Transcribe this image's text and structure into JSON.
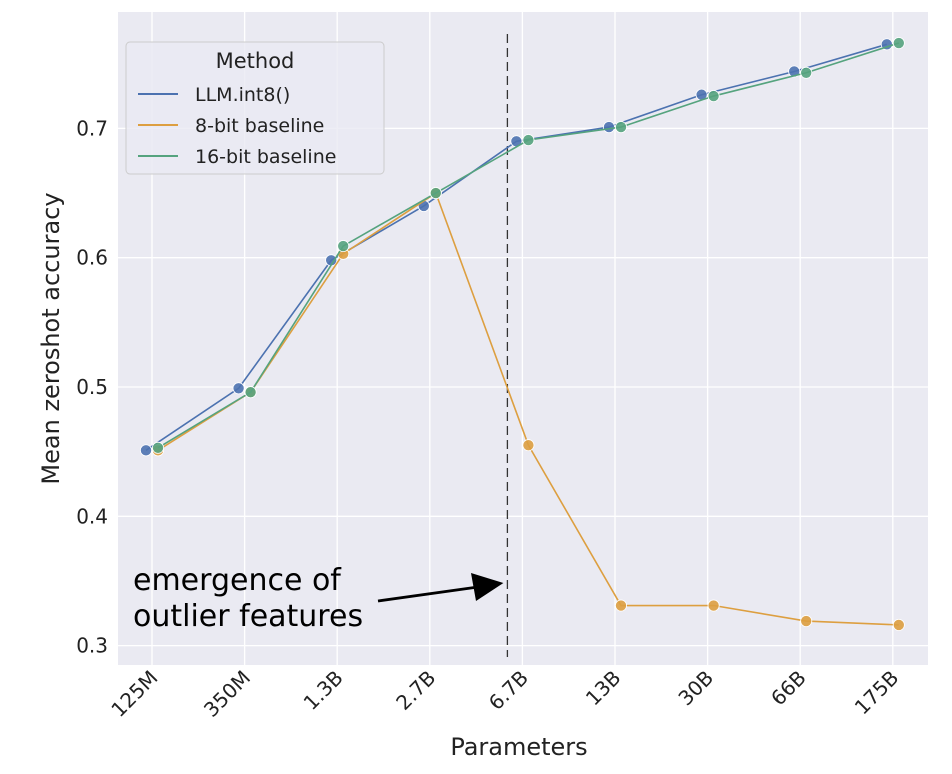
{
  "chart_data": {
    "type": "line",
    "title": "",
    "xlabel": "Parameters",
    "ylabel": "Mean zeroshot accuracy",
    "categories": [
      "125M",
      "350M",
      "1.3B",
      "2.7B",
      "6.7B",
      "13B",
      "30B",
      "66B",
      "175B"
    ],
    "ylim": [
      0.285,
      0.79
    ],
    "yticks": [
      0.3,
      0.4,
      0.5,
      0.6,
      0.7
    ],
    "ytick_labels": [
      "0.3",
      "0.4",
      "0.5",
      "0.6",
      "0.7"
    ],
    "grid": true,
    "legend": {
      "title": "Method",
      "position": "top-left"
    },
    "series": [
      {
        "name": "LLM.int8()",
        "color": "#4c72b0",
        "values": [
          0.451,
          0.499,
          0.598,
          0.64,
          0.69,
          0.701,
          0.726,
          0.744,
          0.765
        ]
      },
      {
        "name": "8-bit baseline",
        "color": "#dd9f40",
        "values": [
          0.451,
          0.496,
          0.603,
          0.65,
          0.455,
          0.331,
          0.331,
          0.319,
          0.316
        ]
      },
      {
        "name": "16-bit baseline",
        "color": "#55a37e",
        "values": [
          0.453,
          0.496,
          0.609,
          0.65,
          0.691,
          0.701,
          0.725,
          0.743,
          0.766
        ]
      }
    ],
    "vline": {
      "at": "6.7B",
      "style": "dashed"
    },
    "annotation": {
      "lines": [
        "emergence of",
        "outlier features"
      ],
      "points_to": "6.7B",
      "y": 0.343
    }
  }
}
